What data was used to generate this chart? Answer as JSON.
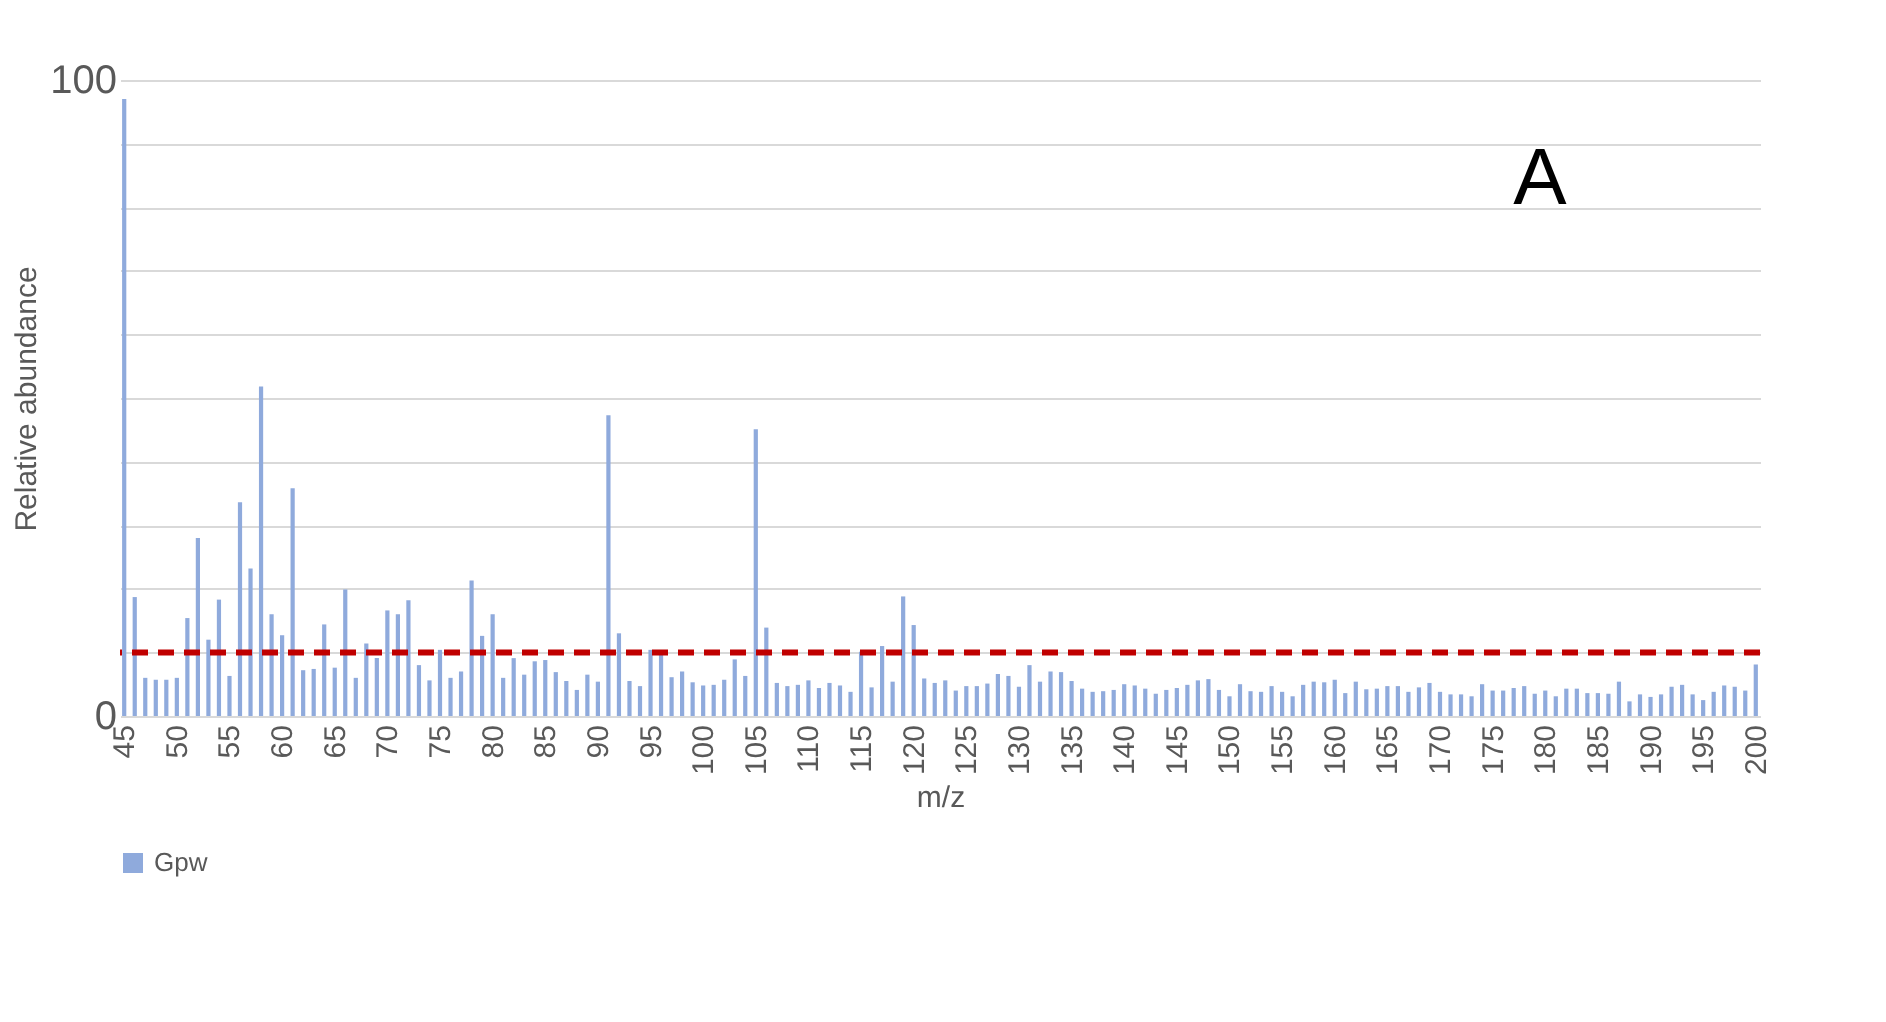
{
  "chart_data": {
    "type": "bar",
    "xlabel": "m/z",
    "ylabel": "Relative abundance",
    "categories": [
      "45",
      null,
      null,
      null,
      null,
      "50",
      null,
      null,
      null,
      null,
      "55",
      null,
      null,
      null,
      null,
      "60",
      null,
      null,
      null,
      null,
      "65",
      null,
      null,
      null,
      null,
      "70",
      null,
      null,
      null,
      null,
      "75",
      null,
      null,
      null,
      null,
      "80",
      null,
      null,
      null,
      null,
      "85",
      null,
      null,
      null,
      null,
      "90",
      null,
      null,
      null,
      null,
      "95",
      null,
      null,
      null,
      null,
      "100",
      null,
      null,
      null,
      null,
      "105",
      null,
      null,
      null,
      null,
      "110",
      null,
      null,
      null,
      null,
      "115",
      null,
      null,
      null,
      null,
      "120",
      null,
      null,
      null,
      null,
      "125",
      null,
      null,
      null,
      null,
      "130",
      null,
      null,
      null,
      null,
      "135",
      null,
      null,
      null,
      null,
      "140",
      null,
      null,
      null,
      null,
      "145",
      null,
      null,
      null,
      null,
      "150",
      null,
      null,
      null,
      null,
      "155",
      null,
      null,
      null,
      null,
      "160",
      null,
      null,
      null,
      null,
      "165",
      null,
      null,
      null,
      null,
      "170",
      null,
      null,
      null,
      null,
      "175",
      null,
      null,
      null,
      null,
      "180",
      null,
      null,
      null,
      null,
      "185",
      null,
      null,
      null,
      null,
      "190",
      null,
      null,
      null,
      null,
      "195",
      null,
      null,
      null,
      null,
      "200"
    ],
    "series": [
      {
        "name": "Gpw",
        "color": "#8faadc",
        "values": [
          97,
          18.7,
          6,
          5.7,
          5.7,
          6,
          15.4,
          28,
          12,
          18.3,
          6.3,
          33.6,
          23.2,
          51.8,
          16,
          12.7,
          35.8,
          7.2,
          7.4,
          14.4,
          7.6,
          19.9,
          6,
          11.4,
          9.1,
          16.6,
          16,
          18.2,
          8,
          5.6,
          10.4,
          6,
          7,
          21.3,
          12.6,
          16,
          6,
          9.1,
          6.5,
          8.6,
          8.8,
          6.9,
          5.5,
          4.1,
          6.5,
          5.4,
          47.3,
          13,
          5.5,
          4.7,
          10.4,
          10.1,
          6.1,
          7,
          5.3,
          4.8,
          4.9,
          5.7,
          8.9,
          6.3,
          45.1,
          13.9,
          5.2,
          4.7,
          4.9,
          5.6,
          4.4,
          5.2,
          4.8,
          3.8,
          10.1,
          4.5,
          11,
          5.4,
          18.8,
          14.3,
          5.9,
          5.2,
          5.6,
          4,
          4.7,
          4.7,
          5.1,
          6.6,
          6.3,
          4.6,
          8,
          5.4,
          7,
          6.9,
          5.5,
          4.3,
          3.8,
          3.9,
          4.1,
          5,
          4.8,
          4.3,
          3.5,
          4.1,
          4.4,
          4.9,
          5.6,
          5.8,
          4.1,
          3.1,
          5,
          3.9,
          3.8,
          4.7,
          3.8,
          3.1,
          4.9,
          5.4,
          5.3,
          5.7,
          3.6,
          5.4,
          4.2,
          4.3,
          4.7,
          4.7,
          3.8,
          4.5,
          5.2,
          3.8,
          3.4,
          3.4,
          3.1,
          5,
          4,
          4,
          4.4,
          4.7,
          3.5,
          4,
          3.1,
          4.3,
          4.3,
          3.6,
          3.6,
          3.5,
          5.4,
          2.3,
          3.4,
          3,
          3.4,
          4.6,
          4.9,
          3.4,
          2.5,
          3.8,
          4.8,
          4.6,
          4,
          8.1
        ]
      }
    ],
    "ylim": [
      0,
      100
    ],
    "yticks": [
      0,
      {
        "value": 10,
        "label": null
      },
      {
        "value": 20,
        "label": null
      },
      {
        "value": 30,
        "label": null
      },
      {
        "value": 40,
        "label": null
      },
      {
        "value": 50,
        "label": null
      },
      {
        "value": 60,
        "label": null
      },
      {
        "value": 70,
        "label": null
      },
      {
        "value": 80,
        "label": null
      },
      {
        "value": 90,
        "label": null
      },
      100
    ],
    "grid": "y",
    "legend": "bottom",
    "ref_lines": [
      {
        "axis": "y",
        "value": 10,
        "color": "#c00000",
        "line_style": "dashed"
      }
    ],
    "annotations": [
      "A"
    ]
  }
}
